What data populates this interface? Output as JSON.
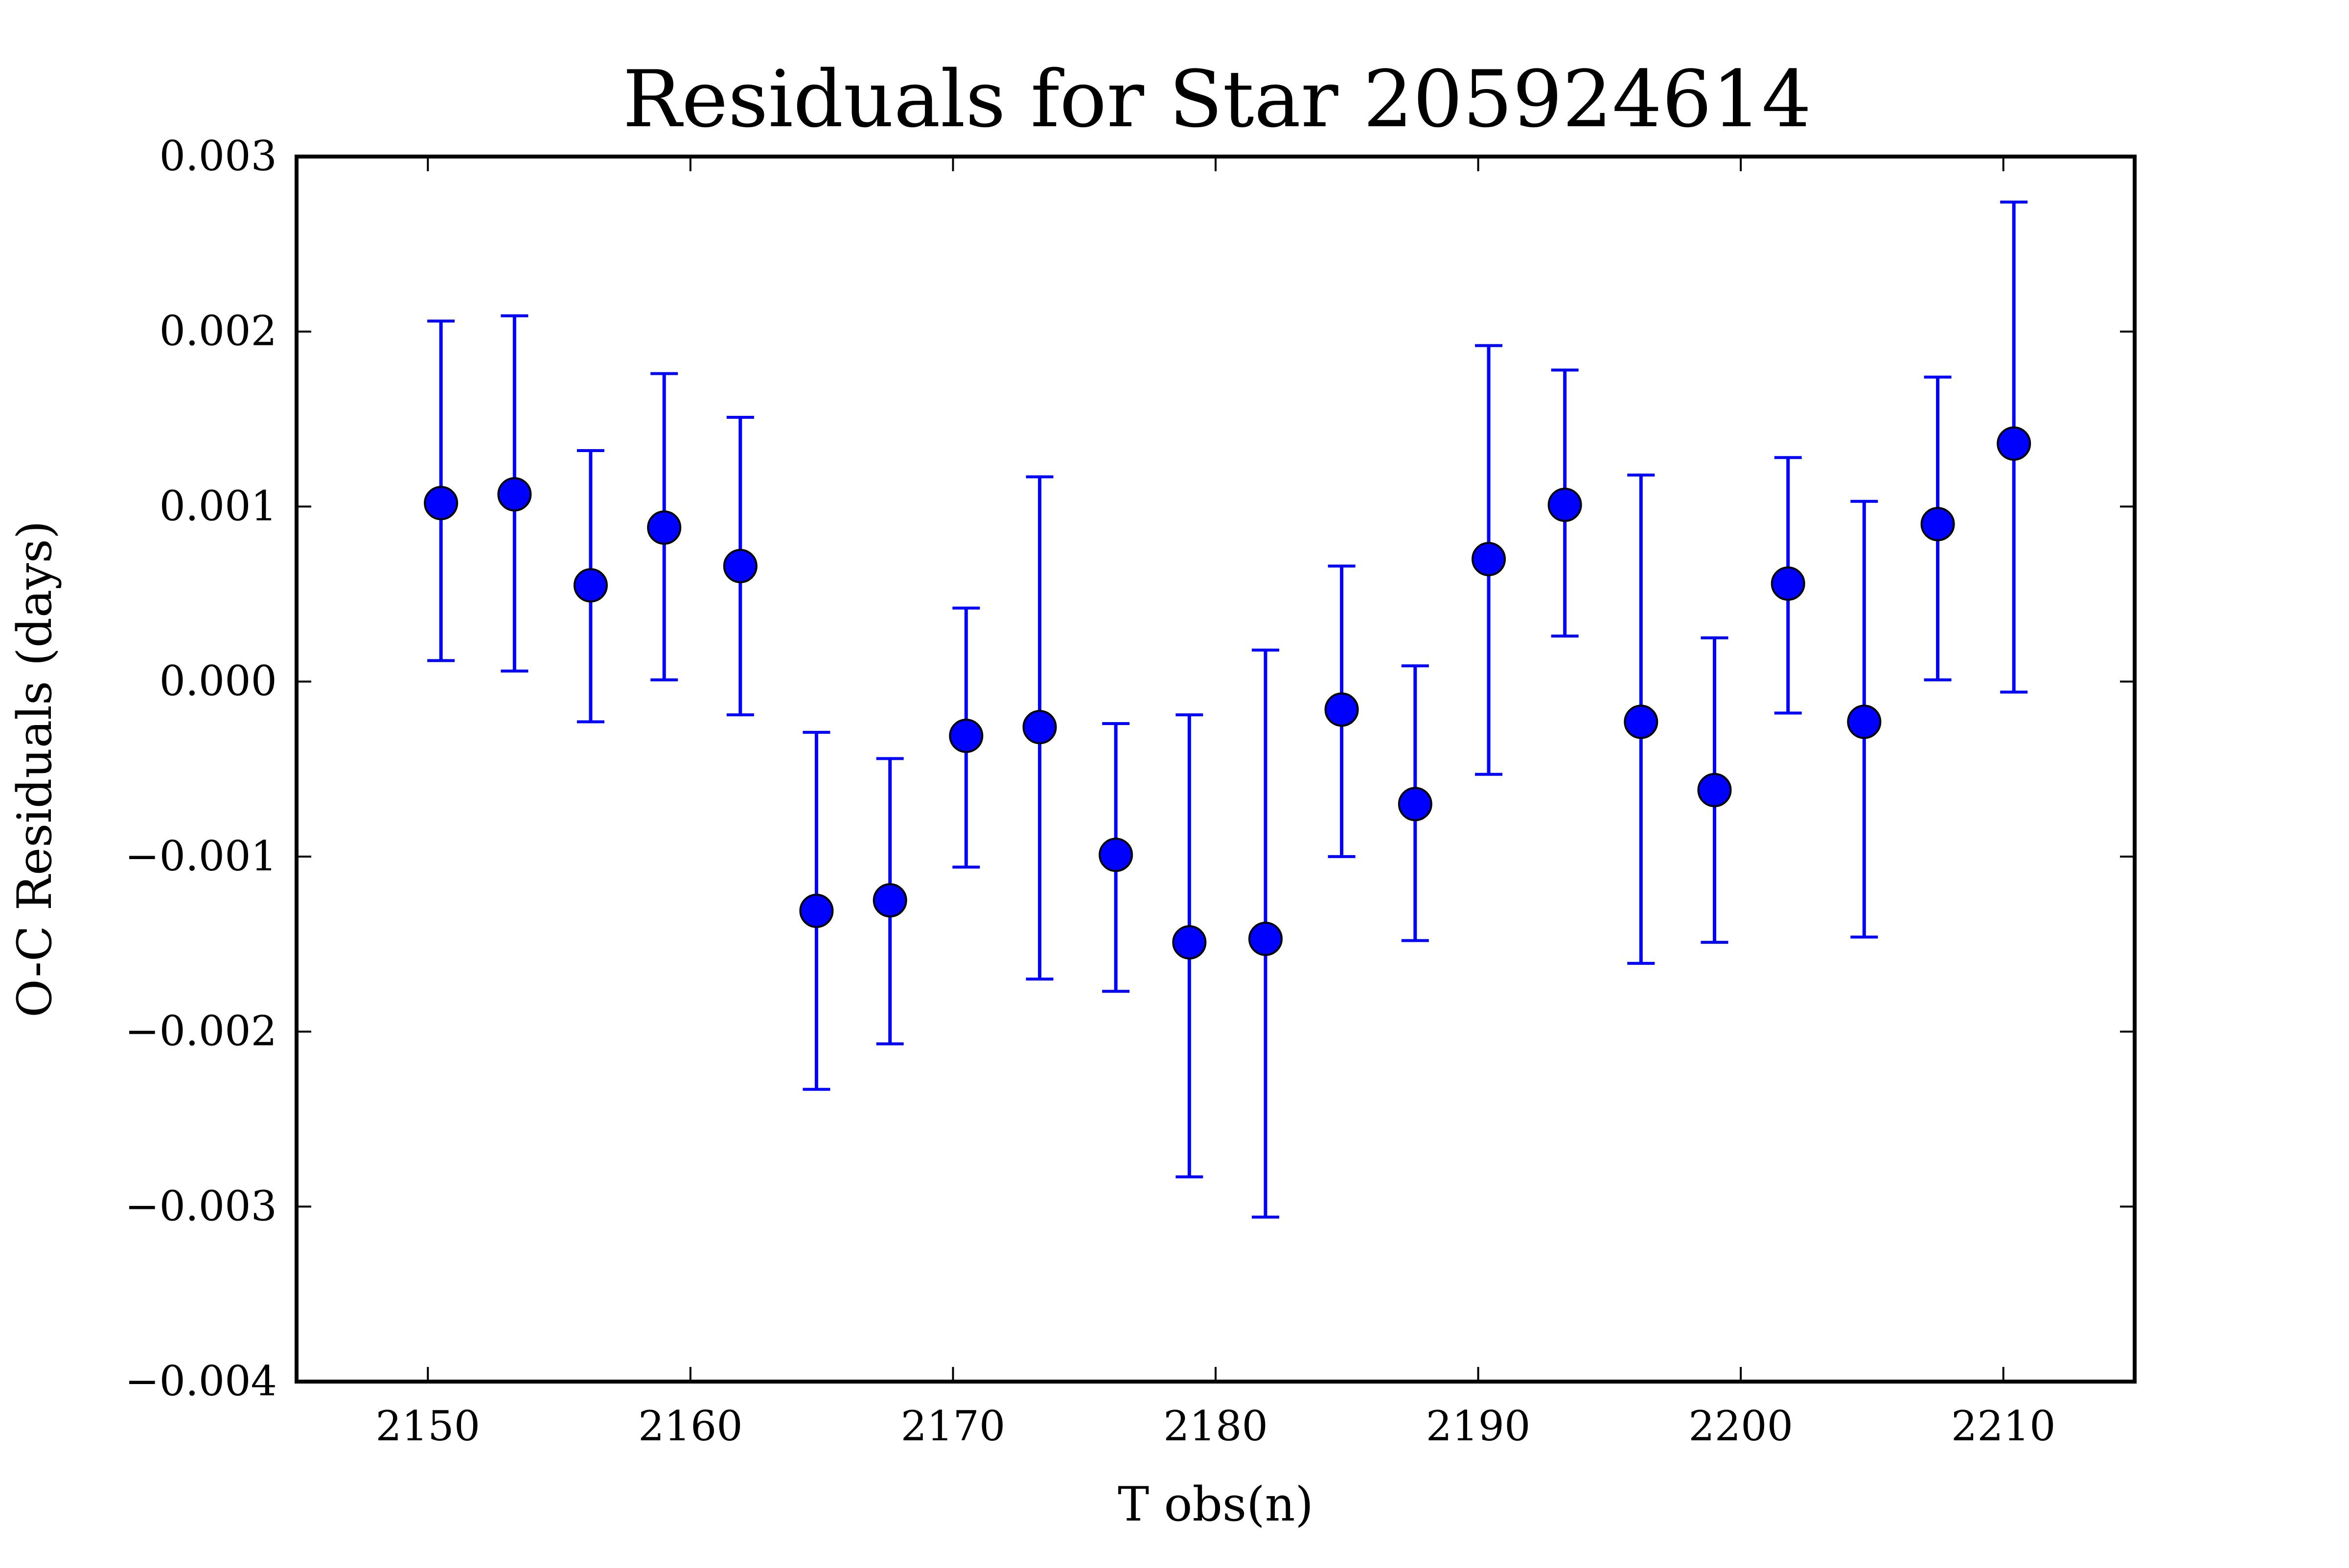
{
  "chart_data": {
    "type": "scatter",
    "title": "Residuals for Star 205924614",
    "xlabel": "T obs(n)",
    "ylabel": "O-C Residuals (days)",
    "xlim": [
      2145,
      2215
    ],
    "ylim": [
      -0.004,
      0.003
    ],
    "x_ticks": [
      2150,
      2160,
      2170,
      2180,
      2190,
      2200,
      2210
    ],
    "y_ticks": [
      -0.004,
      -0.003,
      -0.002,
      -0.001,
      0.0,
      0.001,
      0.002,
      0.003
    ],
    "x_tick_labels": [
      "2150",
      "2160",
      "2170",
      "2180",
      "2190",
      "2200",
      "2210"
    ],
    "y_tick_labels": [
      "−0.004",
      "−0.003",
      "−0.002",
      "−0.001",
      "0.000",
      "0.001",
      "0.002",
      "0.003"
    ],
    "grid": false,
    "colors": {
      "marker_fill": "#0000ff",
      "marker_edge": "#000000",
      "errorbar": "#0000ff",
      "axes": "#000000"
    },
    "series": [
      {
        "x": [
          2150.5,
          2153.3,
          2156.2,
          2159.0,
          2161.9,
          2164.8,
          2167.6,
          2170.5,
          2173.3,
          2176.2,
          2179.0,
          2181.9,
          2184.8,
          2187.6,
          2190.4,
          2193.3,
          2196.2,
          2199.0,
          2201.8,
          2204.7,
          2207.5,
          2210.4
        ],
        "y": [
          0.00102,
          0.00107,
          0.00055,
          0.00088,
          0.00066,
          -0.00131,
          -0.00125,
          -0.00031,
          -0.00026,
          -0.00099,
          -0.00149,
          -0.00147,
          -0.00016,
          -0.0007,
          0.0007,
          0.00101,
          -0.00023,
          -0.00062,
          0.00056,
          -0.00023,
          0.0009,
          0.00136
        ],
        "y_lower": [
          0.00012,
          6e-05,
          -0.00023,
          1e-05,
          -0.00019,
          -0.00233,
          -0.00207,
          -0.00106,
          -0.0017,
          -0.00177,
          -0.00283,
          -0.00306,
          -0.001,
          -0.00148,
          -0.00053,
          0.00026,
          -0.00161,
          -0.00149,
          -0.00018,
          -0.00146,
          1e-05,
          -6e-05
        ],
        "y_upper": [
          0.00206,
          0.00209,
          0.00132,
          0.00176,
          0.00151,
          -0.00029,
          -0.00044,
          0.00042,
          0.00117,
          -0.00024,
          -0.00019,
          0.00018,
          0.00066,
          9e-05,
          0.00192,
          0.00178,
          0.00118,
          0.00025,
          0.00128,
          0.00103,
          0.00174,
          0.00274
        ]
      }
    ]
  }
}
